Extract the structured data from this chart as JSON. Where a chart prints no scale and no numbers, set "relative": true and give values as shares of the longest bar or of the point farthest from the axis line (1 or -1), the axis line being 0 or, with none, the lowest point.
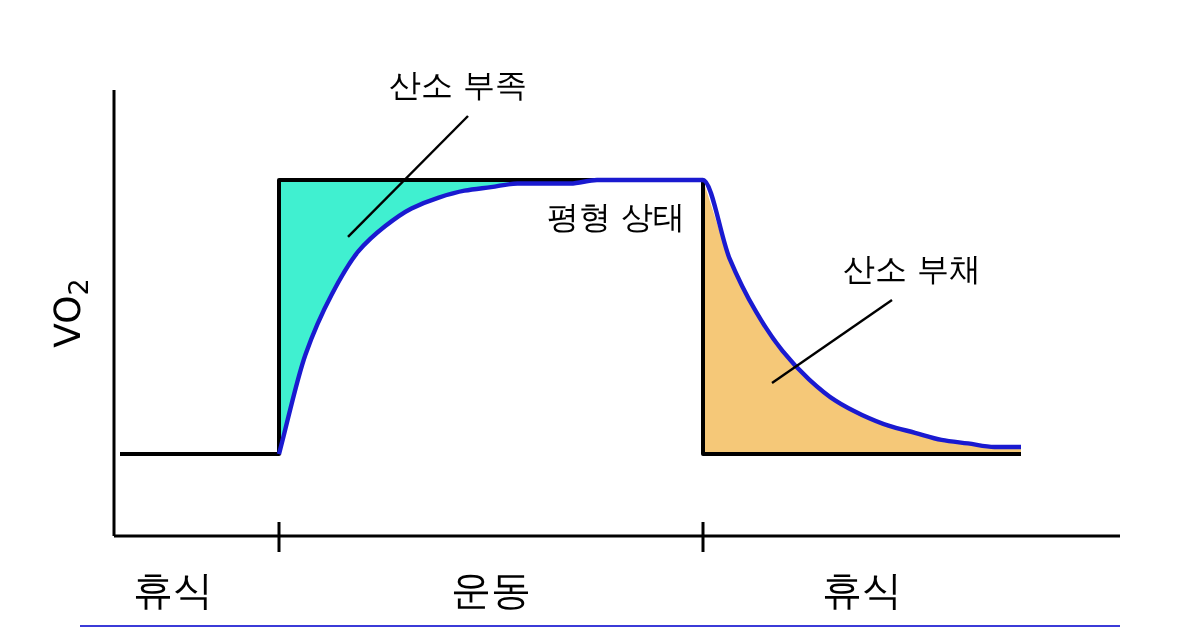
{
  "chart_data": {
    "type": "line",
    "relative": true,
    "ylabel": "VO$_{2}$",
    "categories": [
      null,
      null,
      "휴식",
      null,
      null,
      null,
      null,
      null,
      null,
      null,
      null,
      null,
      null,
      null,
      "운동",
      null,
      null,
      null,
      null,
      null,
      null,
      null,
      null,
      null,
      null,
      null,
      null,
      null,
      "휴식",
      null,
      null,
      null,
      null,
      null,
      null
    ],
    "series": [
      {
        "type": "step",
        "color": "#000000",
        "values": [
          0.23,
          0.23,
          0.23,
          0.23,
          0.23,
          0.23,
          1,
          1,
          1,
          1,
          1,
          1,
          1,
          1,
          1,
          1,
          1,
          1,
          1,
          1,
          1,
          1,
          0.23,
          0.23,
          0.23,
          0.23,
          0.23,
          0.23,
          0.23,
          0.23,
          0.23,
          0.23,
          0.23,
          0.23,
          0.23
        ]
      },
      {
        "type": "line",
        "color": "#1a1ad0",
        "values": [
          null,
          null,
          null,
          null,
          null,
          null,
          0.23,
          0.51,
          0.68,
          0.8,
          0.87,
          0.92,
          0.95,
          0.97,
          0.98,
          0.99,
          0.99,
          0.99,
          1,
          1,
          1,
          1,
          1,
          0.78,
          0.63,
          0.52,
          0.44,
          0.38,
          0.34,
          0.31,
          0.29,
          0.27,
          0.26,
          0.25,
          0.25
        ]
      },
      {
        "type": "area",
        "name": "산소 부족",
        "color": "#40f0d0",
        "values": [
          null,
          null,
          null,
          null,
          null,
          null,
          1,
          1,
          1,
          1,
          1,
          1,
          1,
          1,
          1,
          1,
          1,
          1,
          1,
          1,
          1,
          1,
          null,
          null,
          null,
          null,
          null,
          null,
          null,
          null,
          null,
          null,
          null,
          null,
          null
        ]
      },
      {
        "type": "area",
        "name": "산소 부채",
        "color": "#f5c878",
        "values": [
          null,
          null,
          null,
          null,
          null,
          null,
          null,
          null,
          null,
          null,
          null,
          null,
          null,
          null,
          null,
          null,
          null,
          null,
          null,
          null,
          null,
          null,
          1,
          0.78,
          0.63,
          0.52,
          0.44,
          0.38,
          0.34,
          0.31,
          0.29,
          0.27,
          0.26,
          0.25,
          0.25
        ]
      }
    ],
    "annotations": [
      "평형 상태"
    ]
  }
}
